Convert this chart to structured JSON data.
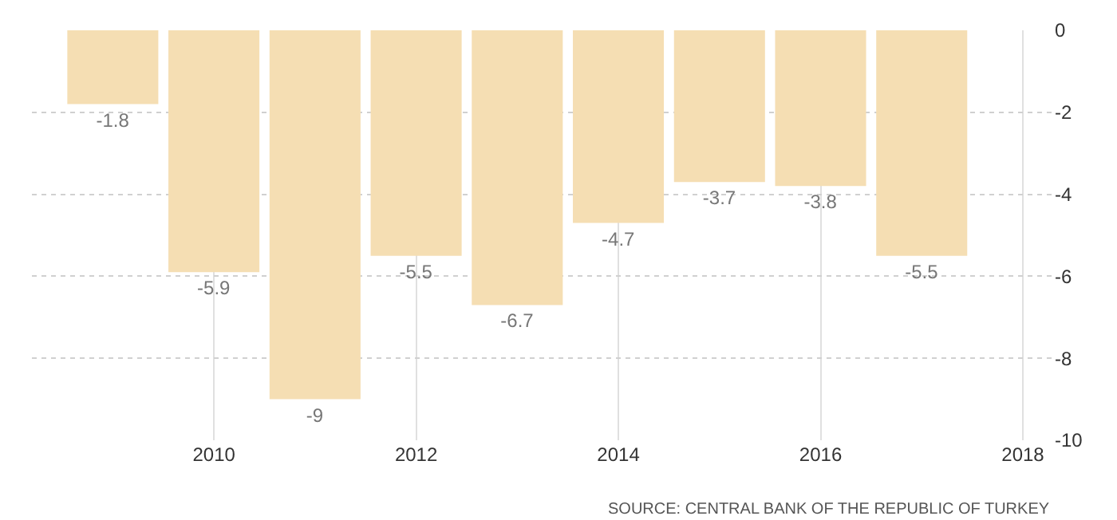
{
  "chart_data": {
    "type": "bar",
    "x": [
      2009,
      2010,
      2011,
      2012,
      2013,
      2014,
      2015,
      2016,
      2017
    ],
    "values": [
      -1.8,
      -5.9,
      -9,
      -5.5,
      -6.7,
      -4.7,
      -3.7,
      -3.8,
      -5.5
    ],
    "color": "#f5deb3",
    "data_labels": true,
    "xlim": [
      2008.2,
      2018.3
    ],
    "xticks": [
      2010,
      2012,
      2014,
      2016,
      2018
    ],
    "ylim": [
      -10,
      0
    ],
    "yticks": [
      -10,
      -8,
      -6,
      -4,
      -2,
      0
    ],
    "grid": true,
    "annotations": [
      "SOURCE: CENTRAL BANK OF THE REPUBLIC OF TURKEY"
    ]
  }
}
